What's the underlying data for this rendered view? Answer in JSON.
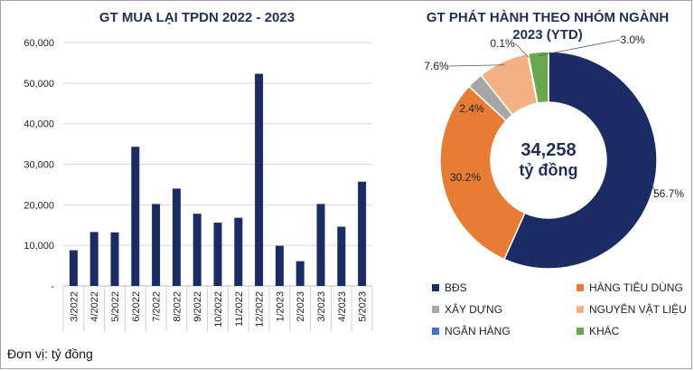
{
  "left_chart_title": "GT MUA LẠI TPDN 2022 - 2023",
  "right_chart_title_line1": "GT PHÁT HÀNH THEO NHÓM NGÀNH",
  "right_chart_title_line2": "2023 (YTD)",
  "unit_note": "Đơn vị: tỷ đồng",
  "center_value": "34,258",
  "center_unit": "tỷ đồng",
  "y_ticks": [
    "60,000",
    "50,000",
    "40,000",
    "30,000",
    "20,000",
    "10,000",
    "-"
  ],
  "colors": {
    "navy": "#1b2b63",
    "orange": "#e77d34",
    "gray": "#a6a6a6",
    "peach": "#f4b183",
    "blue": "#4472c4",
    "green": "#6aa84f",
    "grid": "#d9d9d9"
  },
  "chart_data": [
    {
      "type": "bar",
      "title": "GT MUA LẠI TPDN 2022 - 2023",
      "categories": [
        "3/2022",
        "4/2022",
        "5/2022",
        "6/2022",
        "7/2022",
        "8/2022",
        "9/2022",
        "10/2022",
        "11/2022",
        "12/2022",
        "1/2023",
        "2/2023",
        "3/2023",
        "4/2023",
        "5/2023"
      ],
      "values": [
        8800,
        13300,
        13200,
        34300,
        20200,
        24000,
        17800,
        15600,
        16800,
        52300,
        9900,
        6100,
        20200,
        14600,
        25700
      ],
      "ylim": [
        0,
        60000
      ],
      "grid": true
    },
    {
      "type": "pie",
      "subtype": "donut",
      "title": "GT PHÁT HÀNH THEO NHÓM NGÀNH 2023 (YTD)",
      "slices": [
        {
          "name": "BĐS",
          "value": 56.7,
          "label": "56.7%",
          "color": "#1b2b63"
        },
        {
          "name": "HÀNG TIÊU DÙNG",
          "value": 30.2,
          "label": "30.2%",
          "color": "#e77d34"
        },
        {
          "name": "XÂY DỰNG",
          "value": 2.4,
          "label": "2.4%",
          "color": "#a6a6a6"
        },
        {
          "name": "NGUYÊN VẬT LIỆU",
          "value": 7.6,
          "label": "7.6%",
          "color": "#f4b183"
        },
        {
          "name": "NGÂN HÀNG",
          "value": 0.1,
          "label": "0.1%",
          "color": "#4472c4"
        },
        {
          "name": "KHÁC",
          "value": 3.0,
          "label": "3.0%",
          "color": "#6aa84f"
        }
      ],
      "legend_position": "bottom"
    }
  ]
}
